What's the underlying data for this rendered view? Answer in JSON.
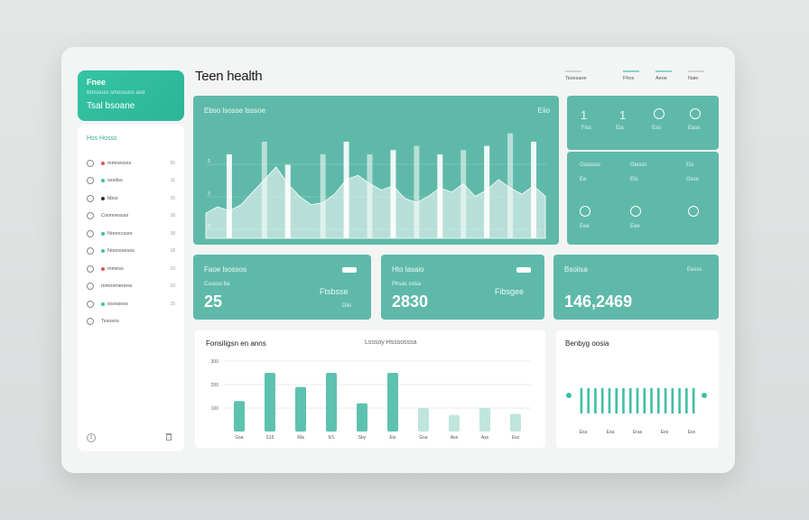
{
  "app": {
    "title": "Teen health",
    "brand": {
      "name": "Fnee",
      "tagline": "Bmssuss smoosuss asd",
      "sub": "Tsal bsoane"
    }
  },
  "top_links": [
    "Tsoesaoe",
    "Fhos",
    "Aeoe",
    "Naie"
  ],
  "sidebar": {
    "header": "Hss Hosss",
    "items": [
      {
        "label": "mmnessss",
        "count": "55",
        "dot": "#e05555"
      },
      {
        "label": "sssdss",
        "count": "11",
        "dot": "#3fbfa4"
      },
      {
        "label": "bbss",
        "count": "15",
        "dot": "#333333"
      },
      {
        "label": "Coonnessss",
        "count": "18",
        "dot": ""
      },
      {
        "label": "Nooncuses",
        "count": "18",
        "dot": "#3fbfa4"
      },
      {
        "label": "Noonssesss",
        "count": "18",
        "dot": "#3fbfa4"
      },
      {
        "label": "mmess",
        "count": "10",
        "dot": "#e05555"
      },
      {
        "label": "mmoomeness",
        "count": "10",
        "dot": ""
      },
      {
        "label": "osossess",
        "count": "15",
        "dot": "#3fbfa4"
      },
      {
        "label": "Tssosns",
        "count": "",
        "dot": ""
      }
    ],
    "footer_badge": "2"
  },
  "main_chart": {
    "title": "Ebso lsosse lsssoe",
    "controls": "Eiio",
    "y_ticks": [
      "5",
      "3",
      "2"
    ]
  },
  "right_stats": {
    "top": [
      {
        "value": "1",
        "label": "Fiss"
      },
      {
        "value": "1",
        "label": "Eia"
      },
      {
        "value": "",
        "label": "Ess"
      },
      {
        "value": "",
        "label": "Eass"
      }
    ],
    "middle": {
      "labels": [
        "Gosssss",
        "Giesss",
        "Eis",
        "Gsss"
      ],
      "sub": [
        "Ee",
        "Ets",
        "Eee",
        "Eee"
      ]
    }
  },
  "kpis": [
    {
      "title": "Faoe lsossos",
      "value": "25",
      "sub": "Ftsbsse",
      "tiny": "Diis",
      "small": "Csusso ba"
    },
    {
      "title": "Hto lasaio",
      "value": "2830",
      "sub": "Fibsgee",
      "tiny": "",
      "small": "Phsas sslsa"
    },
    {
      "title": "Bsoiisa",
      "value": "146,2469",
      "sub": "",
      "tiny": "Eesss",
      "small": ""
    }
  ],
  "bar_card": {
    "title": "Fonsiligsn en anns",
    "legend": "Lsssoy Hsssosssa",
    "y_ticks": [
      "300",
      "200",
      "100"
    ],
    "categories": [
      "Gsa",
      "S15",
      "Rla",
      "5/1",
      "Sby",
      "Eis",
      "Gsa",
      "Ass",
      "Ass",
      "Ess"
    ]
  },
  "mini_card": {
    "title": "Benbyg oosia",
    "categories": [
      "Exa",
      "Exa",
      "Eras",
      "Ees",
      "Exx"
    ]
  },
  "colors": {
    "accent": "#3fbfa4",
    "panel": "#5fb9a9",
    "brand": "#2cb597"
  },
  "chart_data": [
    {
      "type": "area",
      "title": "Ebso lsosse lsssoe",
      "x": [
        1,
        2,
        3,
        4,
        5,
        6,
        7,
        8,
        9,
        10,
        11,
        12,
        13,
        14,
        15,
        16,
        17,
        18,
        19,
        20,
        21,
        22,
        23,
        24,
        25,
        26,
        27,
        28,
        29,
        30
      ],
      "y": [
        1.2,
        1.5,
        1.3,
        1.6,
        2.2,
        2.8,
        3.4,
        2.6,
        2.0,
        1.6,
        1.7,
        2.1,
        2.8,
        3.0,
        2.6,
        2.3,
        2.5,
        1.9,
        1.7,
        2.0,
        2.4,
        2.2,
        2.6,
        2.0,
        2.3,
        2.8,
        2.4,
        2.1,
        2.5,
        2.0
      ],
      "bars_x": [
        3,
        6,
        8,
        11,
        13,
        15,
        17,
        19,
        21,
        23,
        25,
        27,
        29
      ],
      "bars_y": [
        4.0,
        4.6,
        3.5,
        4.0,
        4.6,
        4.0,
        4.2,
        4.4,
        4.0,
        4.2,
        4.4,
        5.0,
        4.6
      ],
      "ylim": [
        0,
        5.5
      ]
    },
    {
      "type": "bar",
      "title": "Fonsiligsn en anns",
      "categories": [
        "Gsa",
        "S15",
        "Rla",
        "5/1",
        "Sby",
        "Eis",
        "Gsa",
        "Ass",
        "Ass",
        "Ess"
      ],
      "values": [
        130,
        250,
        190,
        250,
        120,
        250,
        100,
        70,
        100,
        75
      ],
      "ylim": [
        0,
        300
      ]
    },
    {
      "type": "bar",
      "title": "Benbyg oosia",
      "values": [
        70,
        70,
        70,
        70,
        70,
        70,
        70,
        70,
        70,
        70,
        70,
        70,
        70,
        70,
        70,
        70,
        70
      ],
      "ylim": [
        0,
        100
      ]
    }
  ]
}
